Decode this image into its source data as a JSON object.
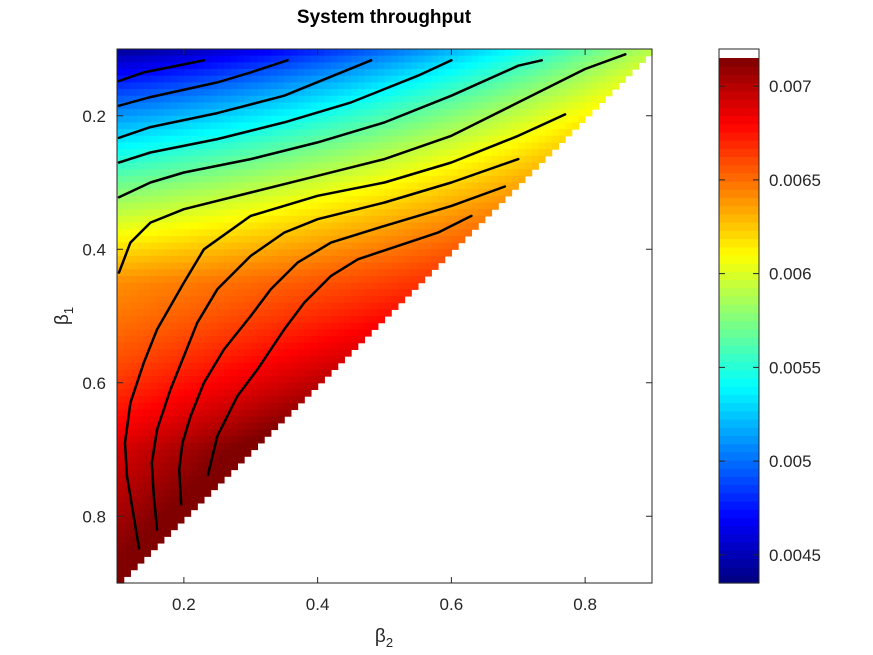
{
  "chart_data": {
    "type": "heatmap",
    "title": "System throughput",
    "xlabel": {
      "base": "β",
      "sub": "2"
    },
    "ylabel": {
      "base": "β",
      "sub": "1"
    },
    "xlim": [
      0.1,
      0.9
    ],
    "ylim": [
      0.9,
      0.1
    ],
    "y_axis_reversed": true,
    "xticks": [
      0.2,
      0.4,
      0.6,
      0.8
    ],
    "xtick_labels": [
      "0.2",
      "0.4",
      "0.6",
      "0.8"
    ],
    "yticks": [
      0.2,
      0.4,
      0.6,
      0.8
    ],
    "ytick_labels": [
      "0.2",
      "0.4",
      "0.6",
      "0.8"
    ],
    "grid_step": 0.01,
    "valid_region": "β1 + β2 ≤ 1",
    "colormap": "jet",
    "colorbar": {
      "range": [
        0.00435,
        0.00715
      ],
      "ticks": [
        0.0045,
        0.005,
        0.0055,
        0.006,
        0.0065,
        0.007
      ],
      "tick_labels": [
        "0.0045",
        "0.005",
        "0.0055",
        "0.006",
        "0.0065",
        "0.007"
      ]
    },
    "contour_lines": [
      {
        "points": [
          [
            0.103,
            0.148
          ],
          [
            0.14,
            0.135
          ],
          [
            0.2,
            0.123
          ],
          [
            0.23,
            0.117
          ]
        ]
      },
      {
        "points": [
          [
            0.103,
            0.185
          ],
          [
            0.15,
            0.172
          ],
          [
            0.25,
            0.15
          ],
          [
            0.3,
            0.135
          ],
          [
            0.355,
            0.117
          ]
        ]
      },
      {
        "points": [
          [
            0.103,
            0.233
          ],
          [
            0.15,
            0.217
          ],
          [
            0.25,
            0.196
          ],
          [
            0.35,
            0.17
          ],
          [
            0.48,
            0.117
          ]
        ]
      },
      {
        "points": [
          [
            0.103,
            0.27
          ],
          [
            0.15,
            0.255
          ],
          [
            0.25,
            0.235
          ],
          [
            0.35,
            0.21
          ],
          [
            0.45,
            0.18
          ],
          [
            0.55,
            0.14
          ],
          [
            0.6,
            0.117
          ]
        ]
      },
      {
        "points": [
          [
            0.103,
            0.322
          ],
          [
            0.15,
            0.3
          ],
          [
            0.2,
            0.285
          ],
          [
            0.3,
            0.265
          ],
          [
            0.4,
            0.24
          ],
          [
            0.5,
            0.21
          ],
          [
            0.6,
            0.17
          ],
          [
            0.7,
            0.125
          ],
          [
            0.735,
            0.117
          ]
        ]
      },
      {
        "points": [
          [
            0.103,
            0.435
          ],
          [
            0.12,
            0.39
          ],
          [
            0.15,
            0.36
          ],
          [
            0.2,
            0.34
          ],
          [
            0.3,
            0.315
          ],
          [
            0.4,
            0.29
          ],
          [
            0.5,
            0.265
          ],
          [
            0.6,
            0.23
          ],
          [
            0.7,
            0.18
          ],
          [
            0.8,
            0.13
          ],
          [
            0.86,
            0.108
          ]
        ]
      },
      {
        "points": [
          [
            0.133,
            0.848
          ],
          [
            0.125,
            0.8
          ],
          [
            0.115,
            0.74
          ],
          [
            0.112,
            0.69
          ],
          [
            0.12,
            0.63
          ],
          [
            0.14,
            0.57
          ],
          [
            0.16,
            0.52
          ],
          [
            0.2,
            0.45
          ],
          [
            0.23,
            0.4
          ],
          [
            0.3,
            0.35
          ],
          [
            0.4,
            0.32
          ],
          [
            0.5,
            0.3
          ],
          [
            0.6,
            0.27
          ],
          [
            0.7,
            0.23
          ],
          [
            0.77,
            0.198
          ]
        ]
      },
      {
        "points": [
          [
            0.16,
            0.82
          ],
          [
            0.155,
            0.77
          ],
          [
            0.152,
            0.72
          ],
          [
            0.16,
            0.67
          ],
          [
            0.18,
            0.61
          ],
          [
            0.2,
            0.56
          ],
          [
            0.22,
            0.51
          ],
          [
            0.25,
            0.46
          ],
          [
            0.3,
            0.41
          ],
          [
            0.35,
            0.375
          ],
          [
            0.4,
            0.355
          ],
          [
            0.5,
            0.33
          ],
          [
            0.6,
            0.3
          ],
          [
            0.7,
            0.265
          ]
        ]
      },
      {
        "points": [
          [
            0.196,
            0.782
          ],
          [
            0.193,
            0.73
          ],
          [
            0.198,
            0.69
          ],
          [
            0.21,
            0.65
          ],
          [
            0.23,
            0.6
          ],
          [
            0.26,
            0.55
          ],
          [
            0.3,
            0.5
          ],
          [
            0.33,
            0.46
          ],
          [
            0.37,
            0.42
          ],
          [
            0.42,
            0.39
          ],
          [
            0.5,
            0.365
          ],
          [
            0.6,
            0.335
          ],
          [
            0.68,
            0.306
          ]
        ]
      },
      {
        "points": [
          [
            0.236,
            0.738
          ],
          [
            0.25,
            0.68
          ],
          [
            0.28,
            0.62
          ],
          [
            0.31,
            0.58
          ],
          [
            0.35,
            0.52
          ],
          [
            0.38,
            0.48
          ],
          [
            0.42,
            0.44
          ],
          [
            0.46,
            0.415
          ],
          [
            0.52,
            0.395
          ],
          [
            0.58,
            0.375
          ],
          [
            0.63,
            0.35
          ]
        ]
      }
    ]
  }
}
